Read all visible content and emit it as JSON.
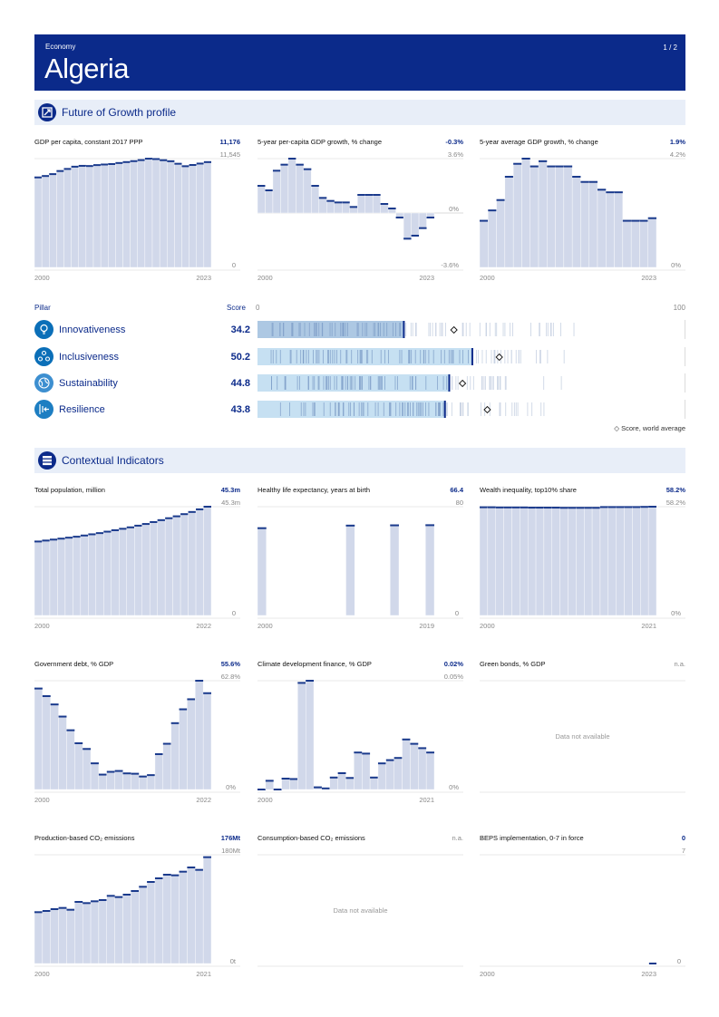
{
  "header": {
    "label": "Economy",
    "country": "Algeria",
    "page": "1 / 2"
  },
  "sections": {
    "growth": "Future of Growth profile",
    "context": "Contextual Indicators"
  },
  "pillars": {
    "col_pillar": "Pillar",
    "col_score": "Score",
    "scale_min": "0",
    "scale_max": "100",
    "legend": "Score, world average",
    "items": [
      {
        "name": "Innovativeness",
        "score": "34.2",
        "value": 34.2,
        "avg": 45.9
      },
      {
        "name": "Inclusiveness",
        "score": "50.2",
        "value": 50.2,
        "avg": 56.5
      },
      {
        "name": "Sustainability",
        "score": "44.8",
        "value": 44.8,
        "avg": 47.9
      },
      {
        "name": "Resilience",
        "score": "43.8",
        "value": 43.8,
        "avg": 53.7
      }
    ]
  },
  "colors": {
    "brand": "#0b2a8a",
    "bar": "#d1d8ea",
    "cap": "#1a3a8c",
    "pillar_bar": "#c6e0f2",
    "pillar_bar_dark": "#adc8e3"
  },
  "chart_data": [
    {
      "id": "gdp",
      "type": "bar",
      "title": "GDP per capita, constant 2017 PPP",
      "value_label": "11,176",
      "ylim": [
        0,
        11545
      ],
      "ytop": "11,545",
      "ybottom": "0",
      "xstart": "2000",
      "xend": "2023",
      "values": [
        9550,
        9700,
        9900,
        10230,
        10450,
        10690,
        10780,
        10760,
        10860,
        10920,
        10970,
        11080,
        11180,
        11280,
        11390,
        11540,
        11500,
        11380,
        11270,
        11000,
        10740,
        10870,
        11020,
        11176
      ]
    },
    {
      "id": "gdp5",
      "type": "bar",
      "title": "5-year per-capita GDP growth, % change",
      "value_label": "-0.3%",
      "ylim": [
        -3.6,
        3.6
      ],
      "ytop": "3.6%",
      "ymid": "0%",
      "ybottom": "-3.6%",
      "xstart": "2000",
      "xend": "2023",
      "values": [
        1.8,
        1.5,
        2.8,
        3.2,
        3.6,
        3.2,
        2.9,
        1.8,
        1.0,
        0.8,
        0.7,
        0.7,
        0.4,
        1.2,
        1.2,
        1.2,
        0.6,
        0.3,
        -0.3,
        -1.7,
        -1.5,
        -1.0,
        -0.3
      ]
    },
    {
      "id": "gdpavg",
      "type": "bar",
      "title": "5-year average GDP growth, % change",
      "value_label": "1.9%",
      "ylim": [
        0,
        4.2
      ],
      "ytop": "4.2%",
      "ybottom": "0%",
      "xstart": "2000",
      "xend": "2023",
      "values": [
        1.8,
        2.2,
        2.6,
        3.5,
        4.0,
        4.2,
        3.9,
        4.1,
        3.9,
        3.9,
        3.9,
        3.5,
        3.3,
        3.3,
        3.0,
        2.9,
        2.9,
        1.8,
        1.8,
        1.8,
        1.9
      ]
    },
    {
      "id": "pop",
      "type": "bar",
      "title": "Total population, million",
      "value_label": "45.3m",
      "ylim": [
        0,
        45.3
      ],
      "ytop": "45.3m",
      "ybottom": "0",
      "xstart": "2000",
      "xend": "2022",
      "values": [
        30.8,
        31.2,
        31.6,
        32.0,
        32.4,
        32.8,
        33.3,
        33.8,
        34.3,
        34.9,
        35.5,
        36.1,
        36.7,
        37.4,
        38.1,
        38.9,
        39.7,
        40.5,
        41.3,
        42.2,
        43.1,
        44.2,
        45.3
      ]
    },
    {
      "id": "hle",
      "type": "bar",
      "title": "Healthy life expectancy, years at birth",
      "value_label": "66.4",
      "ylim": [
        0,
        80
      ],
      "ytop": "80",
      "ybottom": "0",
      "xstart": "2000",
      "xend": "2019",
      "values": [
        64.2,
        null,
        null,
        null,
        null,
        null,
        null,
        null,
        null,
        null,
        66.1,
        null,
        null,
        null,
        null,
        66.3,
        null,
        null,
        null,
        66.4
      ]
    },
    {
      "id": "wealth",
      "type": "bar",
      "title": "Wealth inequality, top10% share",
      "value_label": "58.2%",
      "ylim": [
        0,
        58.2
      ],
      "ytop": "58.2%",
      "ybottom": "0%",
      "xstart": "2000",
      "xend": "2021",
      "values": [
        57.9,
        57.9,
        57.8,
        57.8,
        57.8,
        57.8,
        57.7,
        57.7,
        57.7,
        57.7,
        57.6,
        57.6,
        57.6,
        57.6,
        57.6,
        58.0,
        58.0,
        58.0,
        58.0,
        58.0,
        58.1,
        58.2
      ]
    },
    {
      "id": "debt",
      "type": "bar",
      "title": "Government debt, % GDP",
      "value_label": "55.6%",
      "ylim": [
        0,
        62.8
      ],
      "ytop": "62.8%",
      "ybottom": "0%",
      "xstart": "2000",
      "xend": "2022",
      "values": [
        58.3,
        53.9,
        49.1,
        42.1,
        34.2,
        26.7,
        23.4,
        15.1,
        8.6,
        10.2,
        10.7,
        9.3,
        9.1,
        7.5,
        8.3,
        20.4,
        26.4,
        38.3,
        46.3,
        52.1,
        62.8,
        55.6
      ]
    },
    {
      "id": "climate",
      "type": "bar",
      "title": "Climate development finance, % GDP",
      "value_label": "0.02%",
      "ylim": [
        0,
        0.05
      ],
      "ytop": "0.05%",
      "ybottom": "0%",
      "xstart": "2000",
      "xend": "2021",
      "values": [
        0.0,
        0.004,
        0.0,
        0.005,
        0.0048,
        0.049,
        0.05,
        0.001,
        0.0005,
        0.0055,
        0.0075,
        0.0053,
        0.017,
        0.0165,
        0.0055,
        0.012,
        0.0135,
        0.0145,
        0.023,
        0.021,
        0.019,
        0.017
      ]
    },
    {
      "id": "greenbonds",
      "type": "empty",
      "title": "Green bonds, % GDP",
      "value_label": "n.a.",
      "message": "Data not available"
    },
    {
      "id": "co2p",
      "type": "bar",
      "title": "Production-based CO₂ emissions",
      "value_label": "176Mt",
      "ylim": [
        0,
        180
      ],
      "ytop": "180Mt",
      "ybottom": "0t",
      "xstart": "2000",
      "xend": "2021",
      "values": [
        85,
        87,
        90,
        92,
        89,
        102,
        100,
        103,
        105,
        112,
        110,
        114,
        120,
        127,
        135,
        141,
        147,
        146,
        152,
        159,
        155,
        176
      ]
    },
    {
      "id": "co2c",
      "type": "empty",
      "title": "Consumption-based CO₂ emissions",
      "value_label": "n.a.",
      "message": "Data not available"
    },
    {
      "id": "beps",
      "type": "bar",
      "title": "BEPS implementation, 0-7 in force",
      "value_label": "0",
      "ylim": [
        0,
        7
      ],
      "ytop": "7",
      "ybottom": "0",
      "xstart": "2000",
      "xend": "2023",
      "values": [
        null,
        null,
        null,
        null,
        null,
        null,
        null,
        null,
        null,
        null,
        null,
        null,
        null,
        null,
        null,
        null,
        null,
        null,
        null,
        null,
        null,
        null,
        null,
        0
      ]
    }
  ]
}
